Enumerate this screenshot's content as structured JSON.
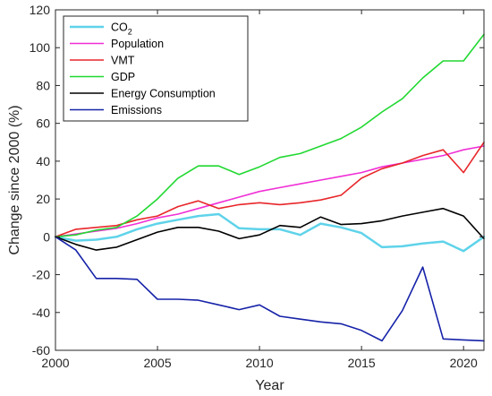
{
  "chart_data": {
    "type": "line",
    "xlabel": "Year",
    "ylabel": "Change since 2000 (%)",
    "xlim": [
      2000,
      2021
    ],
    "ylim": [
      -60,
      120
    ],
    "xticks": [
      2000,
      2005,
      2010,
      2015,
      2020
    ],
    "yticks": [
      -60,
      -40,
      -20,
      0,
      20,
      40,
      60,
      80,
      100,
      120
    ],
    "grid": false,
    "legend_position": "top-left",
    "x": [
      2000,
      2001,
      2002,
      2003,
      2004,
      2005,
      2006,
      2007,
      2008,
      2009,
      2010,
      2011,
      2012,
      2013,
      2014,
      2015,
      2016,
      2017,
      2018,
      2019,
      2020,
      2021
    ],
    "series": [
      {
        "name": "CO2",
        "legend_main": "CO",
        "legend_sub": "2",
        "color": "#5fd3ea",
        "width": 2.5,
        "values": [
          0,
          -2,
          -1.5,
          0,
          4,
          7,
          9,
          11,
          12,
          4.5,
          4,
          4,
          1,
          7,
          5,
          2,
          -5.5,
          -5,
          -3.5,
          -2.5,
          -7.5,
          0
        ]
      },
      {
        "name": "Population",
        "color": "#f02fd6",
        "width": 1.6,
        "values": [
          0,
          1.5,
          3,
          4.5,
          7,
          10,
          12,
          15,
          18,
          21,
          24,
          26,
          28,
          30,
          32,
          34,
          37,
          39,
          41,
          43,
          46,
          48
        ]
      },
      {
        "name": "VMT",
        "color": "#e8262a",
        "width": 1.6,
        "values": [
          0,
          4,
          5,
          6,
          9,
          11,
          16,
          19,
          15,
          17,
          18,
          17,
          18,
          19.5,
          22,
          31,
          36,
          39,
          43,
          46,
          34,
          50
        ]
      },
      {
        "name": "GDP",
        "color": "#21d831",
        "width": 1.6,
        "values": [
          0,
          1,
          3.5,
          5,
          11,
          20,
          31,
          37.5,
          37.5,
          33,
          37,
          42,
          44,
          48,
          52,
          58,
          66,
          73,
          84,
          93,
          93,
          107
        ]
      },
      {
        "name": "Energy Consumption",
        "color": "#000000",
        "width": 1.6,
        "values": [
          0,
          -4,
          -7,
          -5.5,
          -1.5,
          2.5,
          5,
          5,
          3,
          -1,
          1,
          6,
          5,
          10.5,
          6.5,
          7,
          8.5,
          11,
          13,
          15,
          11,
          -1
        ]
      },
      {
        "name": "Emissions",
        "color": "#1622a8",
        "width": 1.6,
        "values": [
          0,
          -7,
          -22,
          -22,
          -22.5,
          -33,
          -33,
          -33.5,
          -36,
          -38.5,
          -36,
          -42,
          -43.5,
          -45,
          -46,
          -49.5,
          -55,
          -39,
          -16,
          -54,
          -54.5,
          -55
        ]
      }
    ]
  }
}
